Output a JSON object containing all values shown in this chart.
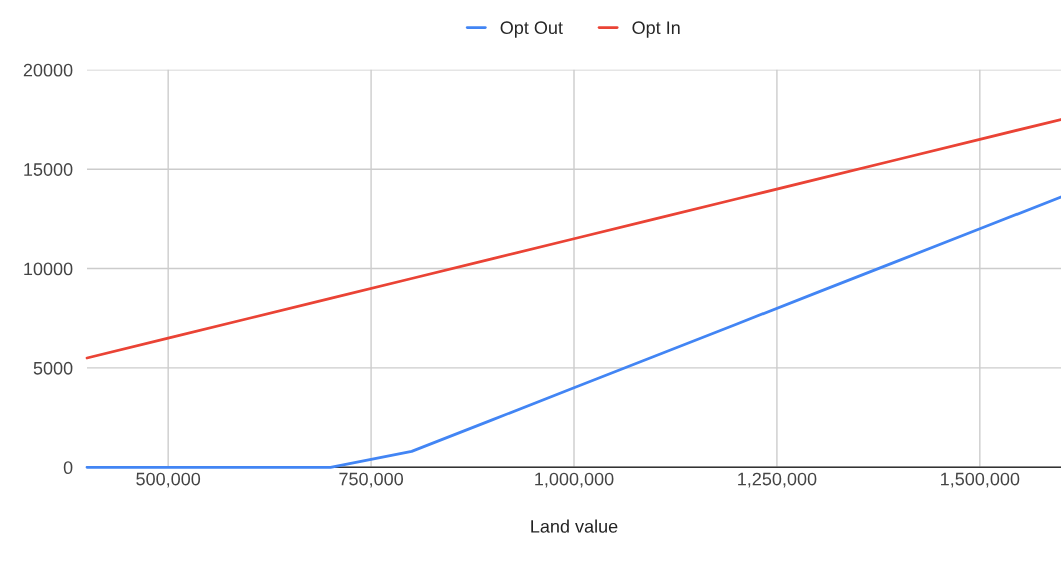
{
  "chart_data": {
    "type": "line",
    "xlabel": "Land value",
    "x": [
      400000,
      500000,
      600000,
      700000,
      800000,
      900000,
      1000000,
      1100000,
      1200000,
      1300000,
      1400000,
      1500000,
      1600000
    ],
    "series": [
      {
        "name": "Opt Out",
        "color": "#4285f4",
        "values": [
          0,
          0,
          0,
          0,
          800,
          2400,
          4000,
          5600,
          7200,
          8800,
          10400,
          12000,
          13600
        ]
      },
      {
        "name": "Opt In",
        "color": "#ea4335",
        "values": [
          5500,
          6500,
          7500,
          8500,
          9500,
          10500,
          11500,
          12500,
          13500,
          14500,
          15500,
          16500,
          17500
        ]
      }
    ],
    "xlim": [
      400000,
      1600000
    ],
    "xticks": [
      {
        "value": 500000,
        "label": "500,000"
      },
      {
        "value": 750000,
        "label": "750,000"
      },
      {
        "value": 1000000,
        "label": "1,000,000"
      },
      {
        "value": 1250000,
        "label": "1,250,000"
      },
      {
        "value": 1500000,
        "label": "1,500,000"
      }
    ],
    "ylim": [
      0,
      20000
    ],
    "yticks": [
      0,
      5000,
      10000,
      15000,
      20000
    ],
    "grid": true,
    "legend": "top",
    "marker": "none",
    "line_style": "solid"
  }
}
